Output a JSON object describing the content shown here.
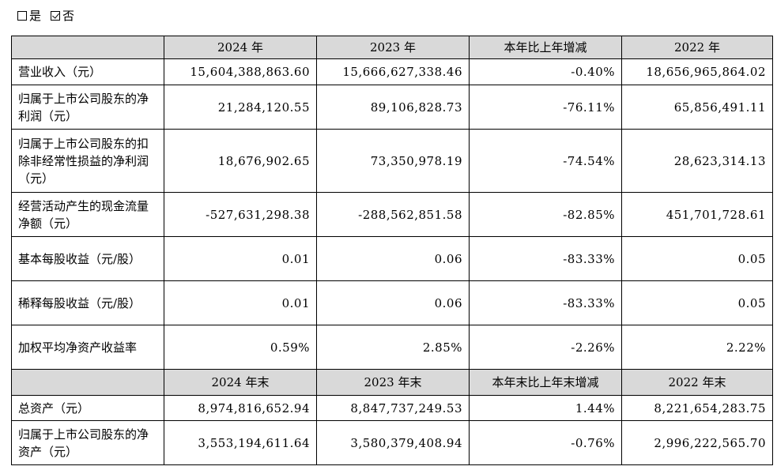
{
  "options": {
    "yes_label": "是",
    "no_label": "否",
    "selected": "否"
  },
  "table": {
    "header1": [
      "",
      "2024 年",
      "2023 年",
      "本年比上年增减",
      "2022 年"
    ],
    "rows1": [
      {
        "label": "营业收入（元）",
        "values": [
          "15,604,388,863.60",
          "15,666,627,338.46",
          "-0.40%",
          "18,656,965,864.02"
        ]
      },
      {
        "label": "归属于上市公司股东的净利润（元）",
        "values": [
          "21,284,120.55",
          "89,106,828.73",
          "-76.11%",
          "65,856,491.11"
        ]
      },
      {
        "label": "归属于上市公司股东的扣除非经常性损益的净利润（元）",
        "values": [
          "18,676,902.65",
          "73,350,978.19",
          "-74.54%",
          "28,623,314.13"
        ]
      },
      {
        "label": "经营活动产生的现金流量净额（元）",
        "values": [
          "-527,631,298.38",
          "-288,562,851.58",
          "-82.85%",
          "451,701,728.61"
        ]
      },
      {
        "label": "基本每股收益（元/股）",
        "values": [
          "0.01",
          "0.06",
          "-83.33%",
          "0.05"
        ]
      },
      {
        "label": "稀释每股收益（元/股）",
        "values": [
          "0.01",
          "0.06",
          "-83.33%",
          "0.05"
        ]
      },
      {
        "label": "加权平均净资产收益率",
        "values": [
          "0.59%",
          "2.85%",
          "-2.26%",
          "2.22%"
        ]
      }
    ],
    "header2": [
      "",
      "2024 年末",
      "2023 年末",
      "本年末比上年末增减",
      "2022 年末"
    ],
    "rows2": [
      {
        "label": "总资产（元）",
        "values": [
          "8,974,816,652.94",
          "8,847,737,249.53",
          "1.44%",
          "8,221,654,283.75"
        ]
      },
      {
        "label": "归属于上市公司股东的净资产（元）",
        "values": [
          "3,553,194,611.64",
          "3,580,379,408.94",
          "-0.76%",
          "2,996,222,565.70"
        ]
      }
    ]
  }
}
